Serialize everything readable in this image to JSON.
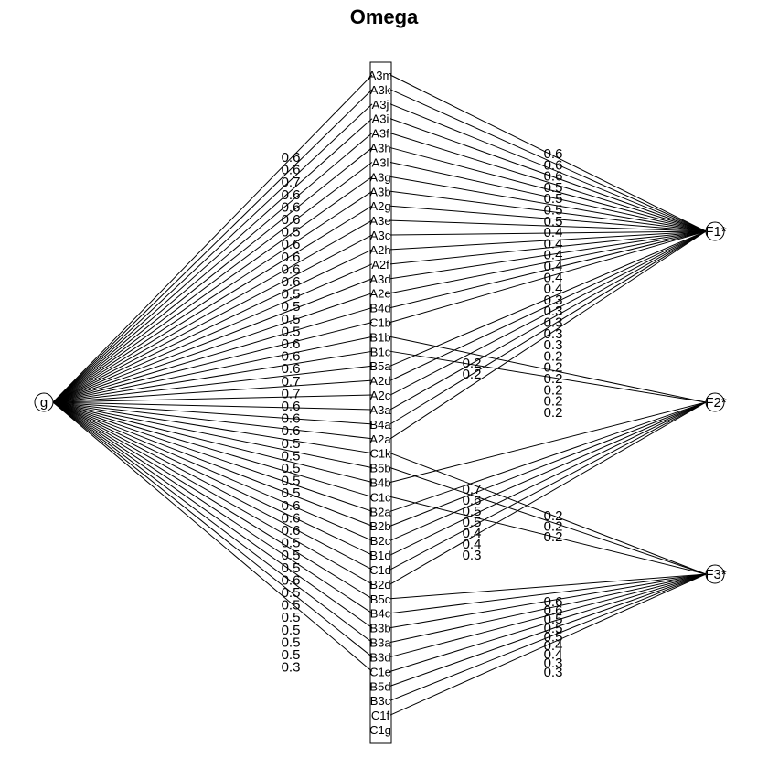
{
  "title": "Omega",
  "general_factor": "g",
  "group_factors": [
    "F1*",
    "F2*",
    "F3*"
  ],
  "items": [
    {
      "name": "A3m",
      "g": "0.6",
      "factor": "F1*",
      "load": "0.6"
    },
    {
      "name": "A3k",
      "g": "0.6",
      "factor": "F1*",
      "load": "0.6"
    },
    {
      "name": "A3j",
      "g": "0.7",
      "factor": "F1*",
      "load": "0.6"
    },
    {
      "name": "A3i",
      "g": "0.6",
      "factor": "F1*",
      "load": "0.5"
    },
    {
      "name": "A3f",
      "g": "0.6",
      "factor": "F1*",
      "load": "0.5"
    },
    {
      "name": "A3h",
      "g": "0.6",
      "factor": "F1*",
      "load": "0.5"
    },
    {
      "name": "A3l",
      "g": "0.5",
      "factor": "F1*",
      "load": "0.5"
    },
    {
      "name": "A3g",
      "g": "0.6",
      "factor": "F1*",
      "load": "0.4"
    },
    {
      "name": "A3b",
      "g": "0.6",
      "factor": "F1*",
      "load": "0.4"
    },
    {
      "name": "A2g",
      "g": "0.6",
      "factor": "F1*",
      "load": "0.4"
    },
    {
      "name": "A3e",
      "g": "0.6",
      "factor": "F1*",
      "load": "0.4"
    },
    {
      "name": "A3c",
      "g": "0.5",
      "factor": "F1*",
      "load": "0.4"
    },
    {
      "name": "A2h",
      "g": "0.5",
      "factor": "F1*",
      "load": "0.4"
    },
    {
      "name": "A2f",
      "g": "0.5",
      "factor": "F1*",
      "load": "0.3"
    },
    {
      "name": "A3d",
      "g": "0.5",
      "factor": "F1*",
      "load": "0.3"
    },
    {
      "name": "A2e",
      "g": "0.6",
      "factor": "F1*",
      "load": "0.3"
    },
    {
      "name": "B4d",
      "g": "0.6",
      "factor": "F1*",
      "load": "0.3"
    },
    {
      "name": "C1b",
      "g": "0.6",
      "factor": "F1*",
      "load": "0.3"
    },
    {
      "name": "B1b",
      "g": "0.7",
      "factor": "F2*",
      "load": "0.2"
    },
    {
      "name": "B1c",
      "g": "0.7",
      "factor": "F2*",
      "load": "0.2"
    },
    {
      "name": "B5a",
      "g": "0.6",
      "factor": "F1*",
      "load": "0.2"
    },
    {
      "name": "A2d",
      "g": "0.6",
      "factor": "F1*",
      "load": "0.2"
    },
    {
      "name": "A2c",
      "g": "0.6",
      "factor": "F1*",
      "load": "0.2"
    },
    {
      "name": "A3a",
      "g": "0.5",
      "factor": "F1*",
      "load": "0.2"
    },
    {
      "name": "B4a",
      "g": "0.5",
      "factor": "F1*",
      "load": "0.2"
    },
    {
      "name": "A2a",
      "g": "0.5",
      "factor": "F1*",
      "load": "0.2"
    },
    {
      "name": "C1k",
      "g": "0.5",
      "factor": "F3*",
      "load": "0.2"
    },
    {
      "name": "B5b",
      "g": "0.5",
      "factor": "F3*",
      "load": "0.2"
    },
    {
      "name": "B4b",
      "g": "0.6",
      "factor": "F2*",
      "load": "0.7"
    },
    {
      "name": "C1c",
      "g": "0.6",
      "factor": "F3*",
      "load": "0.2"
    },
    {
      "name": "B2a",
      "g": "0.6",
      "factor": "F2*",
      "load": "0.6"
    },
    {
      "name": "B2b",
      "g": "0.5",
      "factor": "F2*",
      "load": "0.5"
    },
    {
      "name": "B2c",
      "g": "0.5",
      "factor": "F2*",
      "load": "0.5"
    },
    {
      "name": "B1d",
      "g": "0.5",
      "factor": "F2*",
      "load": "0.4"
    },
    {
      "name": "C1d",
      "g": "0.6",
      "factor": "F2*",
      "load": "0.4"
    },
    {
      "name": "B2d",
      "g": "0.5",
      "factor": "F2*",
      "load": "0.3"
    },
    {
      "name": "B5c",
      "g": "0.5",
      "factor": "F3*",
      "load": "0.6"
    },
    {
      "name": "B4c",
      "g": "0.5",
      "factor": "F3*",
      "load": "0.6"
    },
    {
      "name": "B3b",
      "g": "0.5",
      "factor": "F3*",
      "load": "0.5"
    },
    {
      "name": "B3a",
      "g": "0.5",
      "factor": "F3*",
      "load": "0.5"
    },
    {
      "name": "B3d",
      "g": "0.5",
      "factor": "F3*",
      "load": "0.5"
    },
    {
      "name": "C1e",
      "g": "0.3",
      "factor": "F3*",
      "load": "0.4"
    },
    {
      "name": "B5d",
      "g": "",
      "factor": "F3*",
      "load": "0.4"
    },
    {
      "name": "B3c",
      "g": "",
      "factor": "F3*",
      "load": "0.3"
    },
    {
      "name": "C1f",
      "g": "",
      "factor": "F3*",
      "load": "0.3"
    },
    {
      "name": "C1g",
      "g": "",
      "factor": "",
      "load": ""
    }
  ]
}
